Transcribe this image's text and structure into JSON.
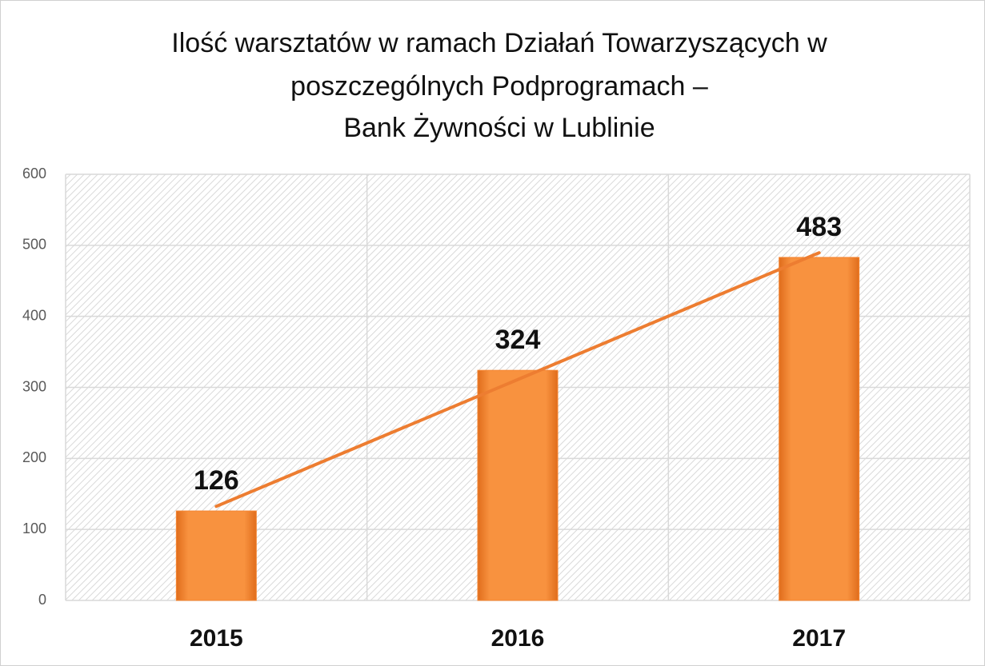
{
  "chart_data": {
    "type": "bar",
    "title": [
      "Ilość warsztatów w ramach Działań Towarzyszących w",
      "poszczególnych Podprogramach  –",
      "Bank Żywności w Lublinie"
    ],
    "categories": [
      "2015",
      "2016",
      "2017"
    ],
    "values": [
      126,
      324,
      483
    ],
    "color": "#f58632",
    "ylim": [
      0,
      600
    ],
    "yticks": [
      0,
      100,
      200,
      300,
      400,
      500,
      600
    ],
    "grid": true,
    "trendline": "linear",
    "trendline_color": "#ed7d31"
  }
}
